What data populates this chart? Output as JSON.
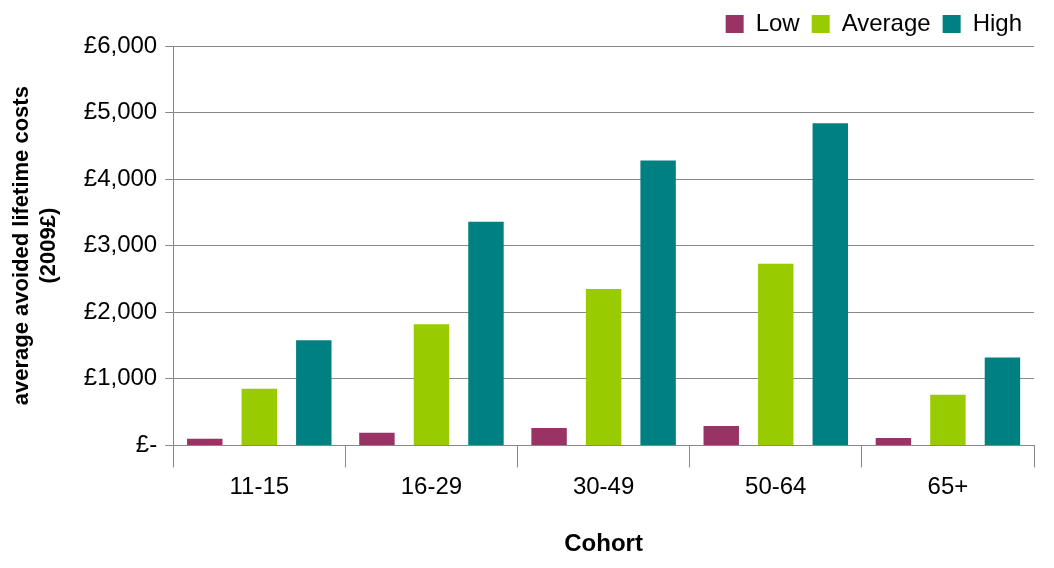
{
  "chart_data": {
    "type": "bar",
    "xlabel": "Cohort",
    "ylabel": "average avoided lifetime costs (2009£)",
    "categories": [
      "11-15",
      "16-29",
      "30-49",
      "50-64",
      "65+"
    ],
    "series": [
      {
        "name": "Low",
        "color": "#993366",
        "values": [
          100,
          190,
          260,
          290,
          110
        ]
      },
      {
        "name": "Average",
        "color": "#99cc00",
        "values": [
          850,
          1820,
          2350,
          2730,
          760
        ]
      },
      {
        "name": "High",
        "color": "#008080",
        "values": [
          1580,
          3360,
          4280,
          4840,
          1320
        ]
      }
    ],
    "ylim": [
      0,
      6000
    ],
    "yticks": [
      {
        "value": 0,
        "label": "£-"
      },
      {
        "value": 1000,
        "label": "£1,000"
      },
      {
        "value": 2000,
        "label": "£2,000"
      },
      {
        "value": 3000,
        "label": "£3,000"
      },
      {
        "value": 4000,
        "label": "£4,000"
      },
      {
        "value": 5000,
        "label": "£5,000"
      },
      {
        "value": 6000,
        "label": "£6,000"
      }
    ],
    "grid": "y",
    "legend": "top"
  }
}
